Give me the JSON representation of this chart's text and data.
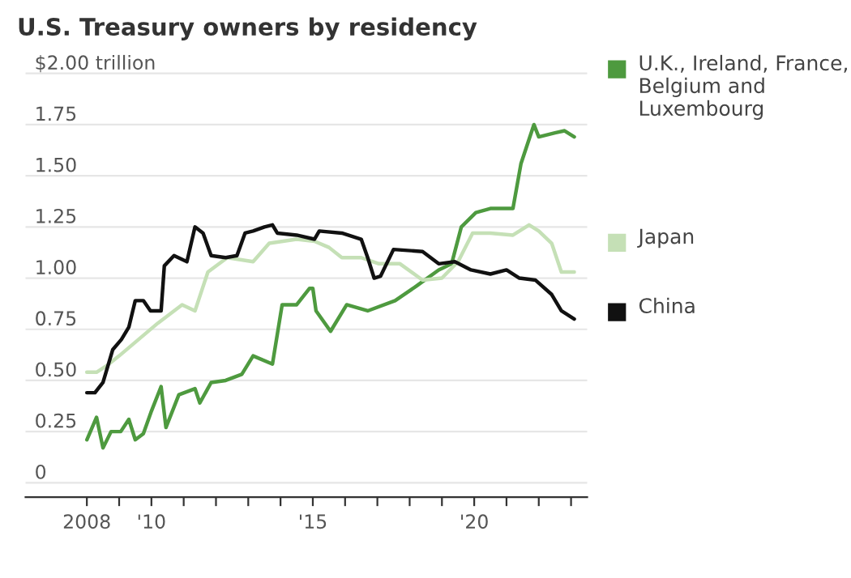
{
  "chart_data": {
    "type": "line",
    "title": "U.S. Treasury owners by residency",
    "xlim": [
      2006.1,
      2023.5
    ],
    "ylim": [
      -0.07,
      2.02
    ],
    "xticks": [
      {
        "value": 2008,
        "label": "2008"
      },
      {
        "value": 2009,
        "label": null
      },
      {
        "value": 2010,
        "label": "'10"
      },
      {
        "value": 2011,
        "label": null
      },
      {
        "value": 2012,
        "label": null
      },
      {
        "value": 2013,
        "label": null
      },
      {
        "value": 2014,
        "label": null
      },
      {
        "value": 2015,
        "label": "'15"
      },
      {
        "value": 2016,
        "label": null
      },
      {
        "value": 2017,
        "label": null
      },
      {
        "value": 2018,
        "label": null
      },
      {
        "value": 2019,
        "label": null
      },
      {
        "value": 2020,
        "label": "'20"
      },
      {
        "value": 2021,
        "label": null
      },
      {
        "value": 2022,
        "label": null
      },
      {
        "value": 2023,
        "label": null
      }
    ],
    "yticks": [
      0,
      0.25,
      {
        "value": 0.5,
        "label": "0.50"
      },
      0.75,
      {
        "value": 1,
        "label": "1.00"
      },
      1.25,
      {
        "value": 1.5,
        "label": "1.50"
      },
      1.75,
      {
        "value": 2,
        "label": "$2.00 trillion"
      }
    ],
    "grid": "y",
    "legend": "right",
    "marker": "none",
    "line_style": "solid",
    "series": [
      {
        "name": "U.K., Ireland, France, Belgium and Luxembourg",
        "color": "#4e9a3f",
        "x": [
          2008.0,
          2008.3,
          2008.5,
          2008.75,
          2009.05,
          2009.3,
          2009.5,
          2009.75,
          2010.0,
          2010.3,
          2010.45,
          2010.85,
          2011.35,
          2011.5,
          2011.85,
          2012.3,
          2012.8,
          2013.15,
          2013.75,
          2014.05,
          2014.5,
          2014.9,
          2015.0,
          2015.1,
          2015.55,
          2016.05,
          2016.7,
          2017.55,
          2018.2,
          2018.9,
          2019.3,
          2019.6,
          2020.05,
          2020.5,
          2021.2,
          2021.45,
          2021.85,
          2022.0,
          2022.5,
          2022.8,
          2023.1
        ],
        "values": [
          0.21,
          0.32,
          0.17,
          0.25,
          0.25,
          0.31,
          0.21,
          0.24,
          0.35,
          0.47,
          0.27,
          0.43,
          0.46,
          0.39,
          0.49,
          0.5,
          0.53,
          0.62,
          0.58,
          0.87,
          0.87,
          0.95,
          0.95,
          0.84,
          0.74,
          0.87,
          0.84,
          0.89,
          0.96,
          1.04,
          1.07,
          1.25,
          1.32,
          1.34,
          1.34,
          1.56,
          1.75,
          1.69,
          1.71,
          1.72,
          1.69
        ]
      },
      {
        "name": "Japan",
        "color": "#c5e0b6",
        "x": [
          2008.0,
          2008.3,
          2008.6,
          2009.0,
          2009.6,
          2010.2,
          2010.95,
          2011.35,
          2011.75,
          2012.35,
          2013.15,
          2013.65,
          2014.5,
          2015.05,
          2015.5,
          2015.9,
          2016.5,
          2017.05,
          2017.7,
          2018.4,
          2019.0,
          2019.5,
          2019.95,
          2020.5,
          2021.2,
          2021.7,
          2022.0,
          2022.4,
          2022.7,
          2023.1
        ],
        "values": [
          0.54,
          0.54,
          0.57,
          0.62,
          0.7,
          0.78,
          0.87,
          0.84,
          1.03,
          1.1,
          1.08,
          1.17,
          1.19,
          1.18,
          1.15,
          1.1,
          1.1,
          1.07,
          1.07,
          0.99,
          1.0,
          1.08,
          1.22,
          1.22,
          1.21,
          1.26,
          1.23,
          1.17,
          1.03,
          1.03
        ]
      },
      {
        "name": "China",
        "color": "#111111",
        "x": [
          2008.0,
          2008.25,
          2008.5,
          2008.8,
          2009.07,
          2009.3,
          2009.5,
          2009.75,
          2009.97,
          2010.3,
          2010.4,
          2010.7,
          2011.1,
          2011.35,
          2011.6,
          2011.85,
          2012.3,
          2012.65,
          2012.9,
          2013.15,
          2013.5,
          2013.75,
          2013.9,
          2014.5,
          2015.05,
          2015.2,
          2015.9,
          2016.5,
          2016.7,
          2016.9,
          2017.1,
          2017.5,
          2018.4,
          2018.9,
          2019.4,
          2019.9,
          2020.5,
          2021.0,
          2021.4,
          2021.9,
          2022.4,
          2022.7,
          2023.1
        ],
        "values": [
          0.44,
          0.44,
          0.49,
          0.65,
          0.7,
          0.76,
          0.89,
          0.89,
          0.84,
          0.84,
          1.06,
          1.11,
          1.08,
          1.25,
          1.22,
          1.11,
          1.1,
          1.11,
          1.22,
          1.23,
          1.25,
          1.26,
          1.22,
          1.21,
          1.19,
          1.23,
          1.22,
          1.19,
          1.1,
          1.0,
          1.01,
          1.14,
          1.13,
          1.07,
          1.08,
          1.04,
          1.02,
          1.04,
          1.0,
          0.99,
          0.92,
          0.84,
          0.8
        ]
      }
    ]
  }
}
